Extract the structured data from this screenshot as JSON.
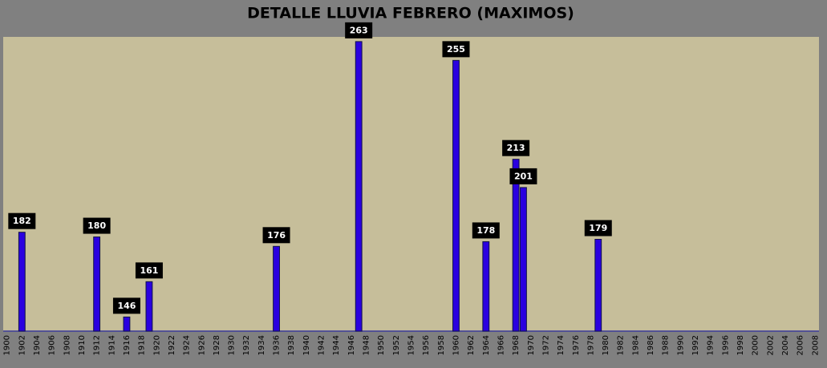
{
  "chart_data": {
    "type": "bar",
    "title": "DETALLE LLUVIA FEBRERO (MAXIMOS)",
    "categories": [
      "1900",
      null,
      "1902",
      null,
      "1904",
      null,
      "1906",
      null,
      "1908",
      null,
      "1910",
      null,
      "1912",
      null,
      "1914",
      null,
      "1916",
      null,
      "1918",
      null,
      "1920",
      null,
      "1922",
      null,
      "1924",
      null,
      "1926",
      null,
      "1928",
      null,
      "1930",
      null,
      "1932",
      null,
      "1934",
      null,
      "1936",
      null,
      "1938",
      null,
      "1940",
      null,
      "1942",
      null,
      "1944",
      null,
      "1946",
      null,
      "1948",
      null,
      "1950",
      null,
      "1952",
      null,
      "1954",
      null,
      "1956",
      null,
      "1958",
      null,
      "1960",
      null,
      "1962",
      null,
      "1964",
      null,
      "1966",
      null,
      "1968",
      null,
      "1970",
      null,
      "1972",
      null,
      "1974",
      null,
      "1976",
      null,
      "1978",
      null,
      "1980",
      null,
      "1982",
      null,
      "1984",
      null,
      "1986",
      null,
      "1988",
      null,
      "1990",
      null,
      "1992",
      null,
      "1994",
      null,
      "1996",
      null,
      "1998",
      null,
      "2000",
      null,
      "2002",
      null,
      "2004",
      null,
      "2006",
      null,
      "2008"
    ],
    "values": [
      null,
      null,
      182,
      null,
      null,
      null,
      null,
      null,
      null,
      null,
      null,
      null,
      180,
      null,
      null,
      null,
      146,
      null,
      null,
      161,
      null,
      null,
      null,
      null,
      null,
      null,
      null,
      null,
      null,
      null,
      null,
      null,
      null,
      null,
      null,
      null,
      176,
      null,
      null,
      null,
      null,
      null,
      null,
      null,
      null,
      null,
      null,
      263,
      null,
      null,
      null,
      null,
      null,
      null,
      null,
      null,
      null,
      null,
      null,
      null,
      255,
      null,
      null,
      null,
      178,
      null,
      null,
      null,
      213,
      201,
      null,
      null,
      null,
      null,
      null,
      null,
      null,
      null,
      null,
      179,
      null,
      null,
      null,
      null,
      null,
      null,
      null,
      null,
      null,
      null,
      null,
      null,
      null,
      null,
      null,
      null,
      null,
      null,
      null,
      null,
      null,
      null,
      null,
      null,
      null,
      null,
      null,
      null,
      null
    ],
    "color": "#2a00e0",
    "ylim": [
      140,
      265
    ]
  }
}
